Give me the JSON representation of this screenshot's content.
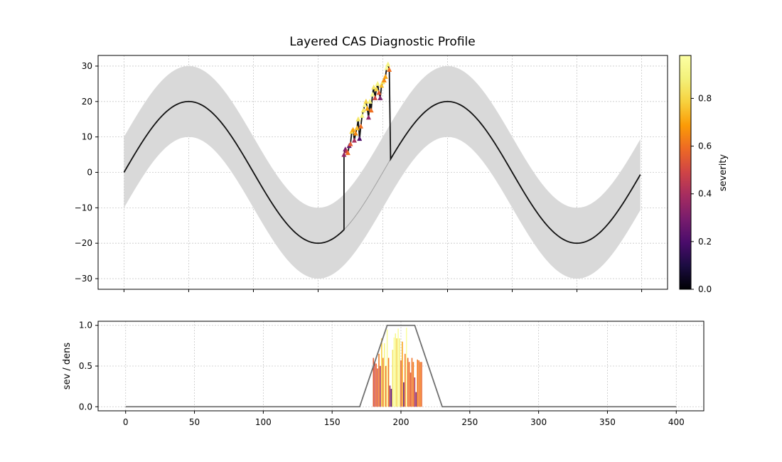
{
  "chart_data": {
    "title": "Layered CAS Diagnostic Profile",
    "top": {
      "type": "line",
      "xlim": [
        -20,
        420
      ],
      "ylim": [
        -33,
        33
      ],
      "yticks": [
        30,
        20,
        10,
        0,
        -10,
        -20,
        -30
      ],
      "xticks": [
        0,
        50,
        100,
        150,
        200,
        250,
        300,
        350,
        400
      ],
      "grid": true,
      "baseline": {
        "description_series": "sine baseline",
        "x_start": 0,
        "x_end": 399,
        "amplitude": 20,
        "period": 200,
        "band_halfwidth": 10
      },
      "anomaly": {
        "x_start": 170,
        "x_end": 206,
        "points": [
          {
            "x": 170,
            "y": 5.0,
            "sev": 0.35
          },
          {
            "x": 171,
            "y": 6.5,
            "sev": 0.3
          },
          {
            "x": 172,
            "y": 6.0,
            "sev": 0.45
          },
          {
            "x": 173,
            "y": 5.5,
            "sev": 0.6
          },
          {
            "x": 174,
            "y": 7.5,
            "sev": 0.25
          },
          {
            "x": 175,
            "y": 8.0,
            "sev": 0.55
          },
          {
            "x": 176,
            "y": 11.5,
            "sev": 0.8
          },
          {
            "x": 177,
            "y": 12.0,
            "sev": 0.7
          },
          {
            "x": 178,
            "y": 9.0,
            "sev": 0.4
          },
          {
            "x": 179,
            "y": 11.0,
            "sev": 0.65
          },
          {
            "x": 180,
            "y": 12.5,
            "sev": 0.75
          },
          {
            "x": 181,
            "y": 15.0,
            "sev": 0.85
          },
          {
            "x": 182,
            "y": 9.5,
            "sev": 0.2
          },
          {
            "x": 183,
            "y": 13.0,
            "sev": 0.6
          },
          {
            "x": 184,
            "y": 16.0,
            "sev": 0.9
          },
          {
            "x": 185,
            "y": 17.5,
            "sev": 0.85
          },
          {
            "x": 186,
            "y": 19.0,
            "sev": 0.95
          },
          {
            "x": 187,
            "y": 20.0,
            "sev": 0.8
          },
          {
            "x": 188,
            "y": 18.0,
            "sev": 0.7
          },
          {
            "x": 189,
            "y": 15.5,
            "sev": 0.35
          },
          {
            "x": 190,
            "y": 20.0,
            "sev": 0.9
          },
          {
            "x": 191,
            "y": 17.5,
            "sev": 0.6
          },
          {
            "x": 192,
            "y": 22.0,
            "sev": 0.95
          },
          {
            "x": 193,
            "y": 24.0,
            "sev": 0.85
          },
          {
            "x": 194,
            "y": 21.0,
            "sev": 0.5
          },
          {
            "x": 195,
            "y": 23.5,
            "sev": 0.8
          },
          {
            "x": 196,
            "y": 25.0,
            "sev": 0.9
          },
          {
            "x": 197,
            "y": 22.5,
            "sev": 0.55
          },
          {
            "x": 198,
            "y": 21.0,
            "sev": 0.3
          },
          {
            "x": 199,
            "y": 24.5,
            "sev": 0.75
          },
          {
            "x": 200,
            "y": 25.5,
            "sev": 0.85
          },
          {
            "x": 201,
            "y": 26.0,
            "sev": 0.65
          },
          {
            "x": 202,
            "y": 27.0,
            "sev": 0.7
          },
          {
            "x": 203,
            "y": 29.5,
            "sev": 0.95
          },
          {
            "x": 204,
            "y": 30.5,
            "sev": 0.9
          },
          {
            "x": 205,
            "y": 29.0,
            "sev": 0.6
          }
        ]
      }
    },
    "colorbar": {
      "label": "severity",
      "min": 0.0,
      "max": 0.98,
      "ticks": [
        0.0,
        0.2,
        0.4,
        0.6,
        0.8
      ],
      "tick_labels": [
        "0.0",
        "0.2",
        "0.4",
        "0.6",
        "0.8"
      ],
      "colormap": "inferno"
    },
    "bottom": {
      "type": "bar",
      "ylabel": "sev / dens",
      "xlim": [
        -20,
        420
      ],
      "ylim": [
        -0.05,
        1.05
      ],
      "yticks": [
        1.0,
        0.5,
        0.0
      ],
      "ytick_labels": [
        "1.0",
        "0.5",
        "0.0"
      ],
      "xticks": [
        0,
        50,
        100,
        150,
        200,
        250,
        300,
        350,
        400
      ],
      "xtick_labels": [
        "0",
        "50",
        "100",
        "150",
        "200",
        "250",
        "300",
        "350",
        "400"
      ],
      "grid": true,
      "density_line": {
        "x": [
          0,
          170,
          190,
          210,
          230,
          400
        ],
        "y": [
          0,
          0,
          1.0,
          1.0,
          0,
          0
        ],
        "color": "#707070"
      },
      "bars": [
        {
          "x": 180,
          "value": 0.6,
          "sev": 0.55
        },
        {
          "x": 181,
          "value": 0.55,
          "sev": 0.5
        },
        {
          "x": 182,
          "value": 0.53,
          "sev": 0.58
        },
        {
          "x": 183,
          "value": 0.47,
          "sev": 0.52
        },
        {
          "x": 184,
          "value": 0.65,
          "sev": 0.62
        },
        {
          "x": 185,
          "value": 0.5,
          "sev": 0.4
        },
        {
          "x": 186,
          "value": 0.84,
          "sev": 0.78
        },
        {
          "x": 187,
          "value": 0.6,
          "sev": 0.62
        },
        {
          "x": 188,
          "value": 0.78,
          "sev": 0.9
        },
        {
          "x": 189,
          "value": 0.5,
          "sev": 0.6
        },
        {
          "x": 190,
          "value": 0.95,
          "sev": 0.95
        },
        {
          "x": 191,
          "value": 0.6,
          "sev": 0.62
        },
        {
          "x": 192,
          "value": 0.26,
          "sev": 0.35
        },
        {
          "x": 193,
          "value": 0.22,
          "sev": 0.22
        },
        {
          "x": 194,
          "value": 0.7,
          "sev": 0.85
        },
        {
          "x": 195,
          "value": 0.85,
          "sev": 0.97
        },
        {
          "x": 196,
          "value": 0.9,
          "sev": 0.92
        },
        {
          "x": 197,
          "value": 0.84,
          "sev": 0.8
        },
        {
          "x": 198,
          "value": 0.96,
          "sev": 0.97
        },
        {
          "x": 199,
          "value": 0.84,
          "sev": 0.88
        },
        {
          "x": 200,
          "value": 0.57,
          "sev": 0.55
        },
        {
          "x": 201,
          "value": 0.8,
          "sev": 0.7
        },
        {
          "x": 202,
          "value": 0.3,
          "sev": 0.25
        },
        {
          "x": 203,
          "value": 0.65,
          "sev": 0.62
        },
        {
          "x": 204,
          "value": 0.97,
          "sev": 0.97
        },
        {
          "x": 205,
          "value": 0.6,
          "sev": 0.58
        },
        {
          "x": 206,
          "value": 0.55,
          "sev": 0.6
        },
        {
          "x": 207,
          "value": 0.42,
          "sev": 0.55
        },
        {
          "x": 208,
          "value": 0.6,
          "sev": 0.6
        },
        {
          "x": 209,
          "value": 0.55,
          "sev": 0.62
        },
        {
          "x": 210,
          "value": 0.36,
          "sev": 0.42
        },
        {
          "x": 211,
          "value": 0.18,
          "sev": 0.3
        },
        {
          "x": 212,
          "value": 0.58,
          "sev": 0.62
        },
        {
          "x": 213,
          "value": 0.57,
          "sev": 0.6
        },
        {
          "x": 214,
          "value": 0.55,
          "sev": 0.62
        },
        {
          "x": 215,
          "value": 0.55,
          "sev": 0.58
        }
      ]
    },
    "colors": {
      "band": "#d9d9d9",
      "line": "#111111",
      "faint_line": "#a0a0a0",
      "grid": "#c8c8c8"
    }
  }
}
